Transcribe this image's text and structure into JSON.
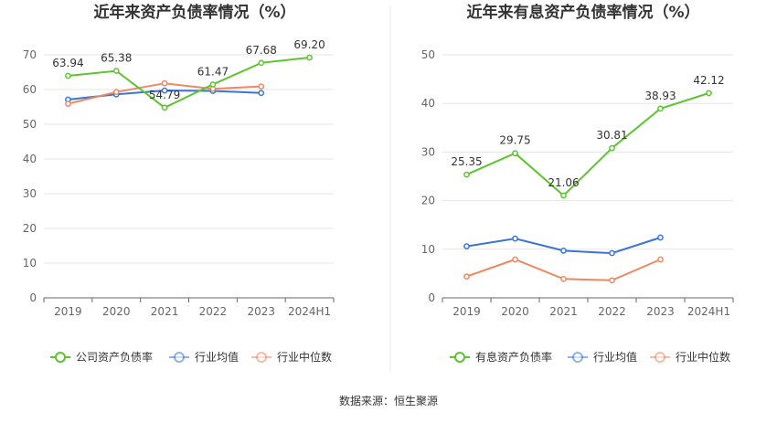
{
  "source_label": "数据来源：恒生聚源",
  "chart_data": [
    {
      "type": "line",
      "title": "近年来资产负债率情况（%）",
      "categories": [
        "2019",
        "2020",
        "2021",
        "2022",
        "2023",
        "2024H1"
      ],
      "ylim": [
        0,
        70
      ],
      "yticks": [
        "0",
        "10",
        "20",
        "30",
        "40",
        "50",
        "60",
        "70"
      ],
      "grid": true,
      "legend_position": "bottom",
      "series": [
        {
          "name": "公司资产负债率",
          "color": "#5cc52e",
          "values": [
            63.94,
            65.38,
            54.79,
            61.47,
            67.68,
            69.2
          ],
          "labels": [
            "63.94",
            "65.38",
            "54.79",
            "61.47",
            "67.68",
            "69.20"
          ]
        },
        {
          "name": "行业均值",
          "color": "#3b74d6",
          "values": [
            57.1,
            58.6,
            59.7,
            59.6,
            59.0,
            null
          ]
        },
        {
          "name": "行业中位数",
          "color": "#ee8860",
          "values": [
            55.9,
            59.3,
            61.8,
            60.2,
            60.9,
            null
          ]
        }
      ]
    },
    {
      "type": "line",
      "title": "近年来有息资产负债率情况（%）",
      "categories": [
        "2019",
        "2020",
        "2021",
        "2022",
        "2023",
        "2024H1"
      ],
      "ylim": [
        0,
        50
      ],
      "yticks": [
        "0",
        "10",
        "20",
        "30",
        "40",
        "50"
      ],
      "grid": true,
      "legend_position": "bottom",
      "series": [
        {
          "name": "有息资产负债率",
          "color": "#5cc52e",
          "values": [
            25.35,
            29.75,
            21.06,
            30.81,
            38.93,
            42.12
          ],
          "labels": [
            "25.35",
            "29.75",
            "21.06",
            "30.81",
            "38.93",
            "42.12"
          ]
        },
        {
          "name": "行业均值",
          "color": "#3b74d6",
          "values": [
            10.6,
            12.2,
            9.7,
            9.2,
            12.4,
            null
          ]
        },
        {
          "name": "行业中位数",
          "color": "#ee8860",
          "values": [
            4.4,
            7.9,
            3.9,
            3.6,
            7.9,
            null
          ]
        }
      ]
    }
  ]
}
